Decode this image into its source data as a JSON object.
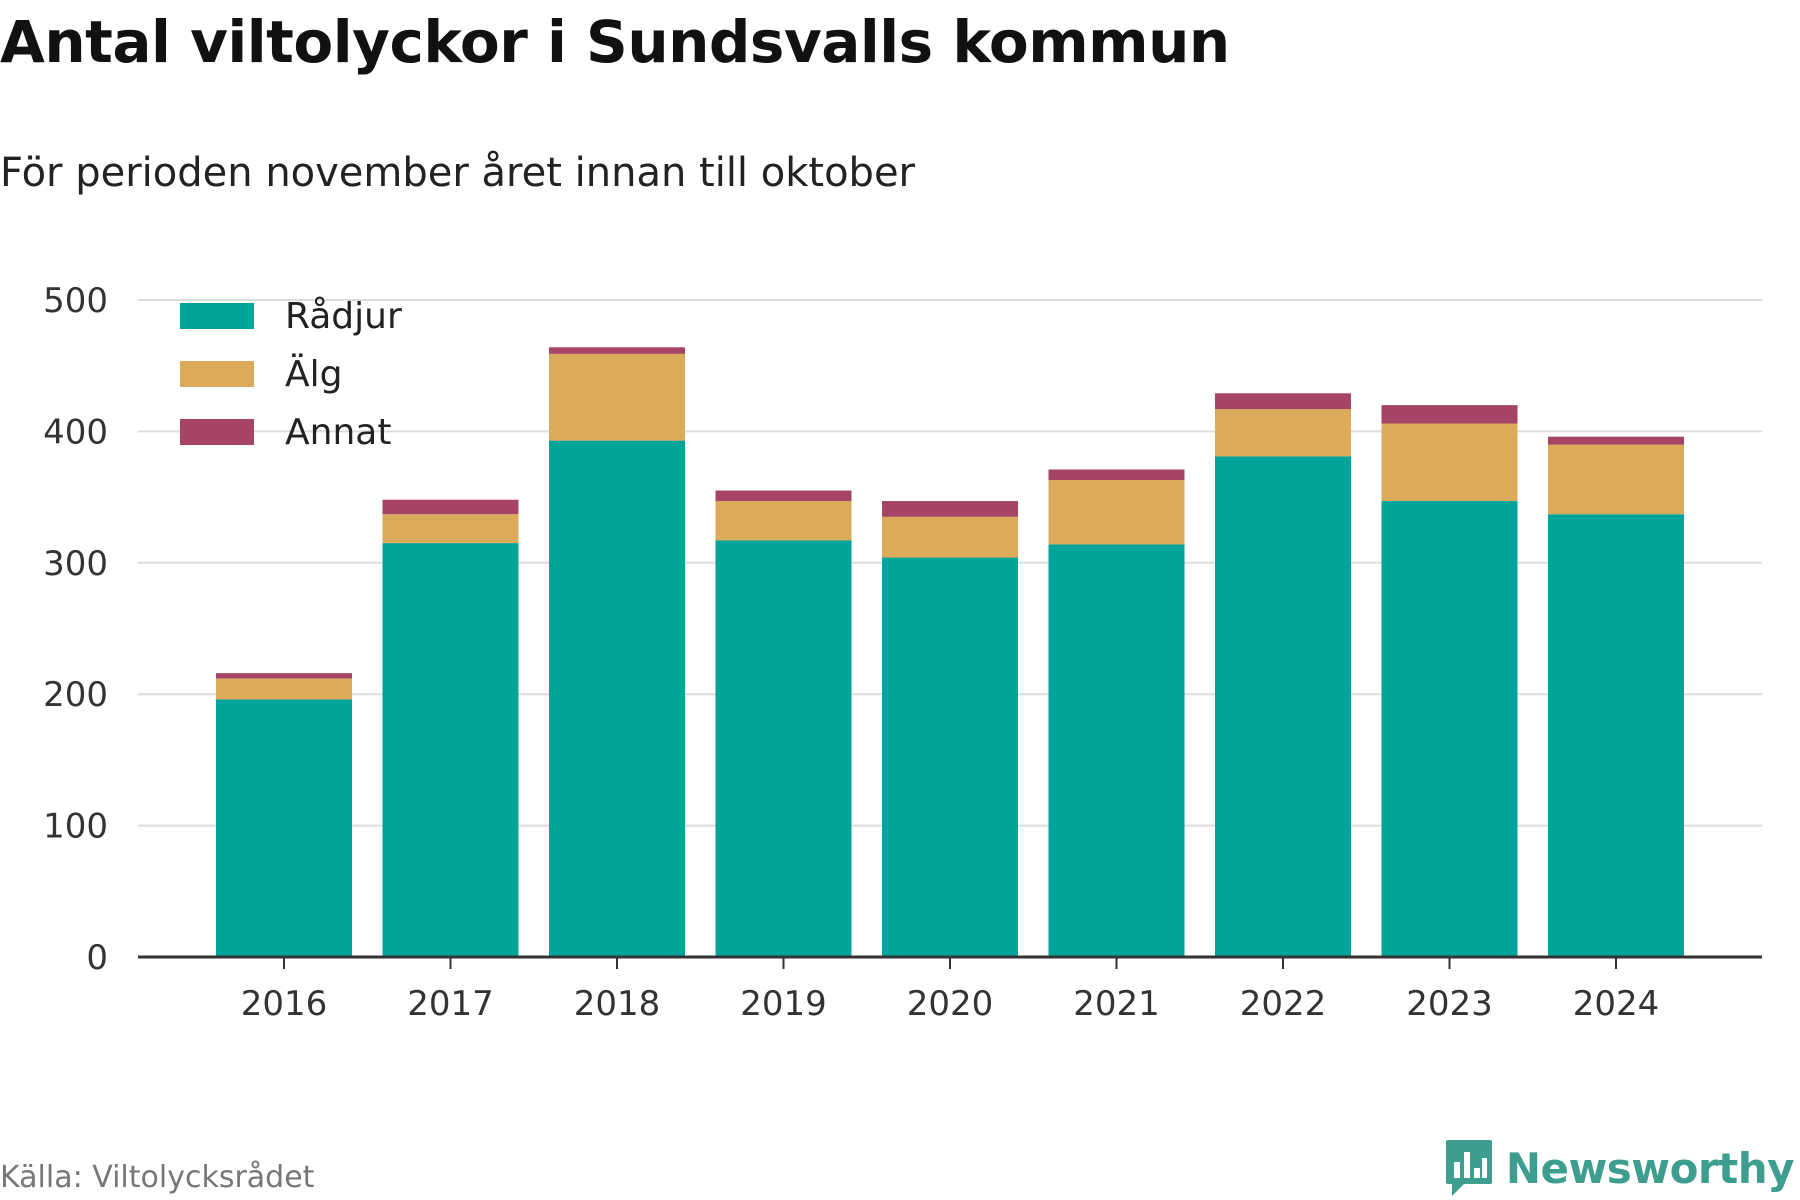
{
  "header": {
    "title": "Antal viltolyckor i Sundsvalls kommun",
    "subtitle": "För perioden november året innan till oktober"
  },
  "footer": {
    "source": "Källa: Viltolycksrådet",
    "brand": "Newsworthy"
  },
  "chart_data": {
    "type": "bar",
    "stacked": true,
    "categories": [
      "2016",
      "2017",
      "2018",
      "2019",
      "2020",
      "2021",
      "2022",
      "2023",
      "2024"
    ],
    "series": [
      {
        "name": "Rådjur",
        "color": "#00a499",
        "values": [
          196,
          315,
          393,
          317,
          304,
          314,
          381,
          347,
          337
        ]
      },
      {
        "name": "Älg",
        "color": "#dbab5b",
        "values": [
          16,
          22,
          66,
          30,
          31,
          49,
          36,
          59,
          53
        ]
      },
      {
        "name": "Annat",
        "color": "#a64466",
        "values": [
          4,
          11,
          5,
          8,
          12,
          8,
          12,
          14,
          6
        ]
      }
    ],
    "ylim": [
      0,
      500
    ],
    "yticks": [
      0,
      100,
      200,
      300,
      400,
      500
    ],
    "grid": true,
    "legend": "top-left",
    "xlabel": "",
    "ylabel": ""
  }
}
